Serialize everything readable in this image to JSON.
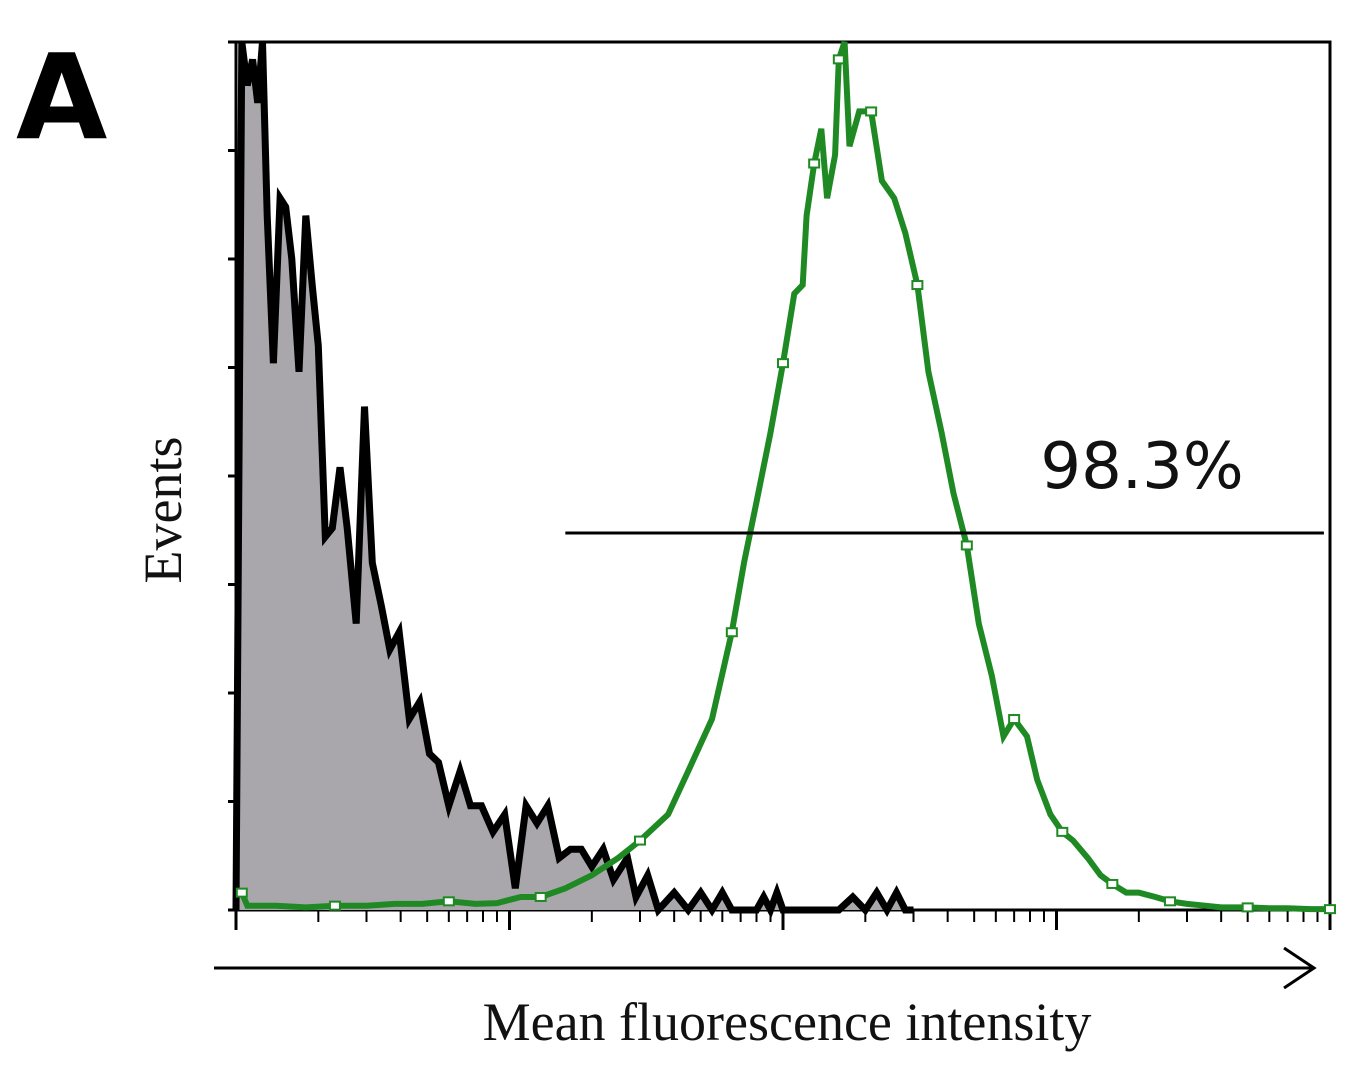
{
  "panel_label": "A",
  "chart_data": {
    "type": "area",
    "xlabel": "Mean fluorescence intensity",
    "ylabel": "Events",
    "x_scale": "log",
    "xlim": [
      1,
      10000
    ],
    "ylim": [
      0,
      100
    ],
    "grid": false,
    "legend": "none",
    "annotations": [
      {
        "text": "98.3%",
        "gate_from_x": 16,
        "gate_to_x": 9500
      }
    ],
    "series": [
      {
        "style": "filled-grey-black-outline",
        "color": "#000000",
        "fill": "#a9a7ab",
        "x": [
          1.0,
          1.05,
          1.1,
          1.15,
          1.2,
          1.25,
          1.3,
          1.37,
          1.45,
          1.52,
          1.6,
          1.7,
          1.8,
          1.9,
          2.0,
          2.12,
          2.25,
          2.4,
          2.55,
          2.75,
          2.95,
          3.15,
          3.4,
          3.65,
          3.95,
          4.3,
          4.7,
          5.1,
          5.5,
          6.0,
          6.6,
          7.2,
          7.9,
          8.7,
          9.6,
          10.5,
          11.5,
          12.6,
          13.8,
          15.2,
          16.7,
          18.3,
          20.0,
          22.0,
          24.0,
          27.0,
          29.0,
          32.0,
          35.0,
          40.0,
          45.0,
          50.0,
          55.0,
          60.0,
          65.0,
          70.0,
          80.0,
          85.0,
          90.0,
          95.0,
          100.0,
          110.0,
          120.0,
          140.0,
          160.0,
          180.0,
          200.0,
          220.0,
          240.0,
          260.0,
          280.0,
          300.0
        ],
        "y": [
          0,
          100,
          95,
          98,
          93,
          100,
          80,
          63,
          82,
          81,
          75,
          62,
          80,
          72,
          65,
          43,
          44,
          51,
          44,
          33,
          58,
          40,
          35,
          30,
          32,
          22,
          24,
          18,
          17,
          12,
          16,
          12,
          12,
          9,
          11,
          2.5,
          12,
          10,
          12,
          6,
          7,
          7,
          5,
          7,
          3.5,
          6,
          1.5,
          4,
          0,
          2,
          0,
          2,
          0,
          2,
          0,
          0,
          0,
          1.5,
          0,
          2,
          0,
          0,
          0,
          0,
          0,
          1.5,
          0,
          2,
          0,
          2,
          0,
          0
        ]
      },
      {
        "style": "green-step-outline",
        "color": "#1f8a24",
        "x": [
          1.0,
          1.05,
          1.1,
          1.4,
          1.8,
          2.3,
          3.0,
          3.8,
          4.8,
          6.0,
          7.5,
          9.0,
          11.0,
          13.0,
          16.0,
          20.0,
          25.0,
          30.0,
          38.0,
          45.0,
          55.0,
          65.0,
          72.0,
          80.0,
          90.0,
          100.0,
          110.0,
          118.0,
          122.0,
          130.0,
          138.0,
          145.0,
          155.0,
          160.0,
          168.0,
          175.0,
          190.0,
          210.0,
          230.0,
          255.0,
          280.0,
          310.0,
          340.0,
          380.0,
          420.0,
          470.0,
          520.0,
          580.0,
          640.0,
          700.0,
          780.0,
          850.0,
          950.0,
          1050.0,
          1150.0,
          1300.0,
          1450.0,
          1600.0,
          1800.0,
          2000.0,
          2300.0,
          2600.0,
          3000.0,
          3500.0,
          4000.0,
          5000.0,
          6000.0,
          7000.0,
          8500.0,
          10000.0
        ],
        "y": [
          2,
          2,
          0.5,
          0.5,
          0.3,
          0.5,
          0.5,
          0.7,
          0.7,
          1.0,
          0.7,
          0.8,
          1.5,
          1.5,
          2.5,
          4.0,
          6.0,
          8.0,
          11.0,
          16.0,
          22.0,
          32.0,
          40.0,
          47.0,
          55.0,
          63.0,
          71.0,
          72.0,
          80.0,
          86.0,
          90.0,
          82.0,
          87.0,
          98.0,
          100.0,
          88.0,
          92.0,
          92.0,
          84.0,
          82.0,
          78.0,
          72.0,
          62.0,
          55.0,
          48.0,
          42.0,
          33.0,
          27.0,
          20.0,
          22.0,
          20.0,
          15.0,
          11.0,
          9.0,
          8.0,
          6.0,
          4.0,
          3.0,
          2.0,
          2.0,
          1.5,
          1.0,
          0.7,
          0.5,
          0.3,
          0.3,
          0.2,
          0.2,
          0.1,
          0.1
        ]
      }
    ]
  }
}
